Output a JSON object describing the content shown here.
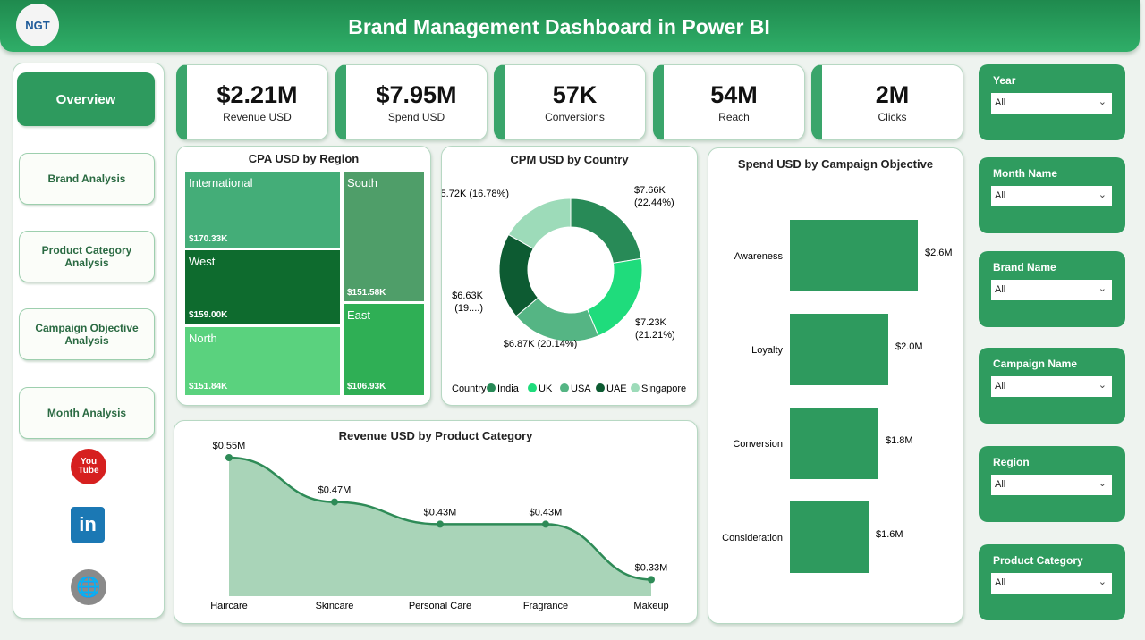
{
  "header": {
    "title": "Brand Management Dashboard in Power BI",
    "logo_text": "NGT"
  },
  "nav": {
    "items": [
      {
        "label": "Overview"
      },
      {
        "label": "Brand Analysis"
      },
      {
        "label": "Product Category Analysis"
      },
      {
        "label": "Campaign Objective Analysis"
      },
      {
        "label": "Month Analysis"
      }
    ],
    "social": [
      {
        "icon": "youtube-icon",
        "label": "You Tube"
      },
      {
        "icon": "linkedin-icon",
        "label": "in"
      },
      {
        "icon": "globe-icon",
        "label": ""
      }
    ]
  },
  "kpis": [
    {
      "value": "$2.21M",
      "label": "Revenue USD"
    },
    {
      "value": "$7.95M",
      "label": "Spend USD"
    },
    {
      "value": "57K",
      "label": "Conversions"
    },
    {
      "value": "54M",
      "label": "Reach"
    },
    {
      "value": "2M",
      "label": "Clicks"
    }
  ],
  "filters": [
    {
      "label": "Year",
      "value": "All"
    },
    {
      "label": "Month Name",
      "value": "All"
    },
    {
      "label": "Brand Name",
      "value": "All"
    },
    {
      "label": "Campaign Name",
      "value": "All"
    },
    {
      "label": "Region",
      "value": "All"
    },
    {
      "label": "Product Category",
      "value": "All"
    }
  ],
  "colors": {
    "primary": "#2e9a5e",
    "header": "#1f8a4e"
  },
  "chart_data": [
    {
      "type": "treemap",
      "title": "CPA USD by Region",
      "categories": [
        "International",
        "South",
        "West",
        "North",
        "East"
      ],
      "values": [
        170.33,
        151.58,
        159.0,
        151.84,
        106.93
      ],
      "labels": [
        "$170.33K",
        "$151.58K",
        "$159.00K",
        "$151.84K",
        "$106.93K"
      ],
      "colors": [
        "#44ad78",
        "#4f9e69",
        "#0e6b2e",
        "#5ad27e",
        "#2faf55"
      ]
    },
    {
      "type": "pie",
      "title": "CPM USD by Country",
      "legend_title": "Country",
      "legend": "bottom",
      "categories": [
        "India",
        "UK",
        "USA",
        "UAE",
        "Singapore"
      ],
      "values": [
        7.66,
        7.23,
        6.87,
        6.63,
        5.72
      ],
      "labels": [
        "$7.66K (22.44%)",
        "$7.23K (21.21%)",
        "$6.87K (20.14%)",
        "$6.63K (19....)",
        "$5.72K (16.78%)"
      ],
      "colors": [
        "#288a57",
        "#1fdc7c",
        "#55b584",
        "#0d5b32",
        "#9ddbb9"
      ]
    },
    {
      "type": "bar",
      "orientation": "horizontal",
      "title": "Spend USD by Campaign Objective",
      "categories": [
        "Awareness",
        "Loyalty",
        "Conversion",
        "Consideration"
      ],
      "values": [
        2.6,
        2.0,
        1.8,
        1.6
      ],
      "labels": [
        "$2.6M",
        "$2.0M",
        "$1.8M",
        "$1.6M"
      ],
      "color": "#2e9a5e"
    },
    {
      "type": "area",
      "title": "Revenue USD by Product Category",
      "categories": [
        "Haircare",
        "Skincare",
        "Personal Care",
        "Fragrance",
        "Makeup"
      ],
      "values": [
        0.55,
        0.47,
        0.43,
        0.43,
        0.33
      ],
      "labels": [
        "$0.55M",
        "$0.47M",
        "$0.43M",
        "$0.43M",
        "$0.33M"
      ],
      "color": "#2e8b57",
      "fill": "#a9d4b8"
    }
  ]
}
